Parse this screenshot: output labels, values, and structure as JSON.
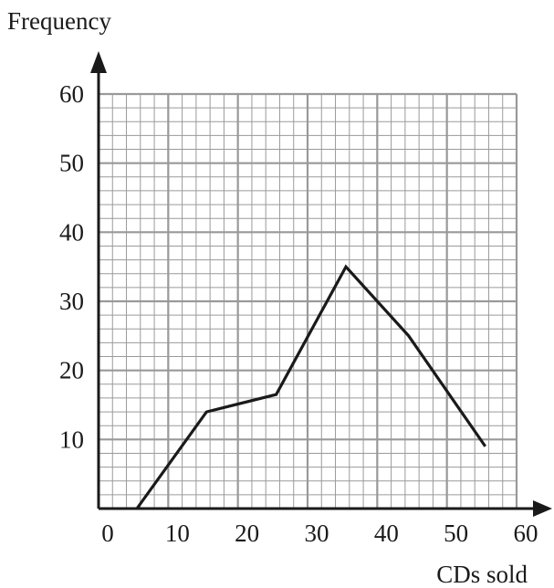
{
  "chart_data": {
    "type": "line",
    "title": "",
    "xlabel": "CDs sold",
    "ylabel": "Frequency",
    "xlim": [
      0,
      60
    ],
    "ylim": [
      0,
      60
    ],
    "x_ticks": [
      "0",
      "10",
      "20",
      "30",
      "40",
      "50",
      "60"
    ],
    "y_ticks": [
      "10",
      "20",
      "30",
      "40",
      "50",
      "60"
    ],
    "grid": true,
    "minor_grid": true,
    "series": [
      {
        "x": [
          5.5,
          15.5,
          25.5,
          35.5,
          44.5,
          55.5
        ],
        "y": [
          0,
          14,
          16.5,
          35,
          25,
          9
        ]
      }
    ],
    "colors": {
      "line": "#1a1a1a",
      "axis": "#1a1a1a",
      "major_grid": "#999999",
      "minor_grid": "#9a9a9a"
    }
  }
}
